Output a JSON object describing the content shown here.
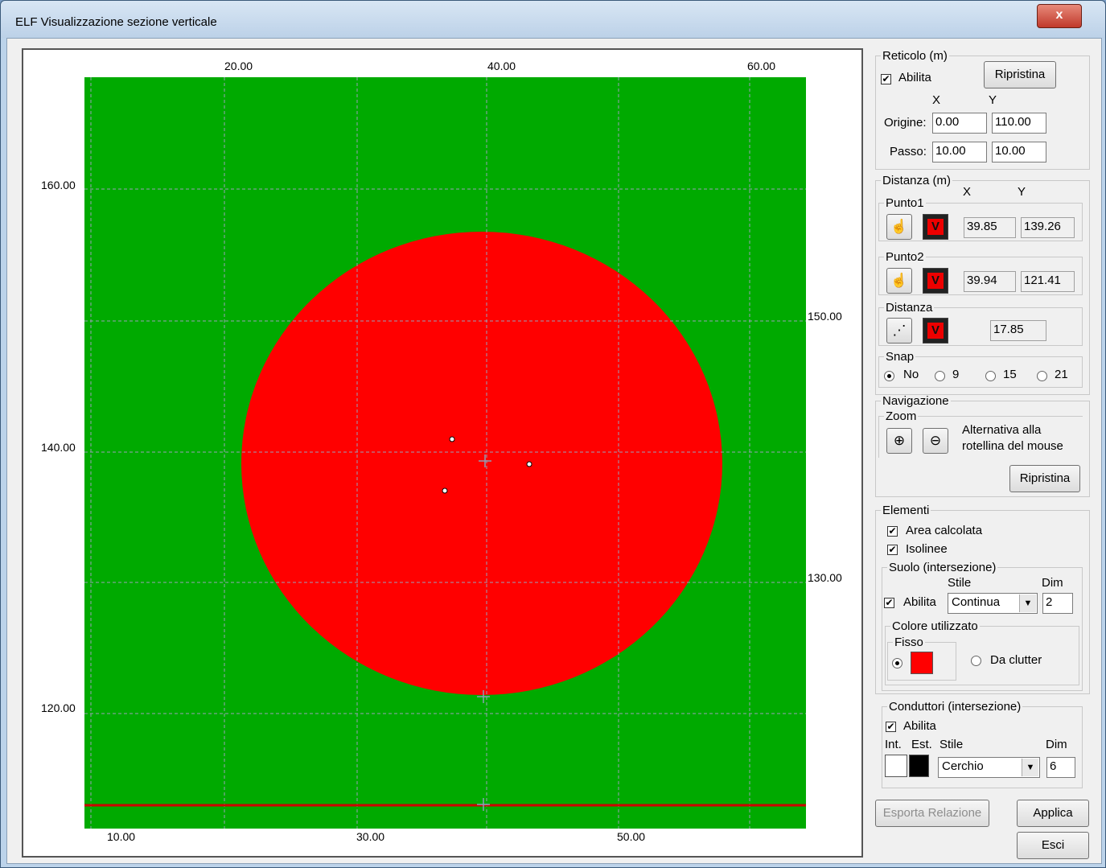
{
  "window": {
    "title": "ELF Visualizzazione sezione verticale",
    "close_label": "x"
  },
  "plot": {
    "top_ticks": [
      "20.00",
      "40.00",
      "60.00"
    ],
    "bottom_ticks": [
      "10.00",
      "30.00",
      "50.00"
    ],
    "left_ticks": [
      "160.00",
      "140.00",
      "120.00"
    ],
    "right_ticks": [
      "150.00",
      "130.00"
    ],
    "colors": {
      "background": "#00aa00",
      "area": "#ff0000",
      "grid": "#9aa0b8",
      "ground": "#cc0000"
    }
  },
  "reticolo": {
    "legend": "Reticolo (m)",
    "abilita_label": "Abilita",
    "abilita_checked": true,
    "ripristina_label": "Ripristina",
    "x_header": "X",
    "y_header": "Y",
    "origine_label": "Origine:",
    "origine_x": "0.00",
    "origine_y": "110.00",
    "passo_label": "Passo:",
    "passo_x": "10.00",
    "passo_y": "10.00"
  },
  "distanza": {
    "legend": "Distanza (m)",
    "x_header": "X",
    "y_header": "Y",
    "punto1_legend": "Punto1",
    "punto1_x": "39.85",
    "punto1_y": "139.26",
    "punto2_legend": "Punto2",
    "punto2_x": "39.94",
    "punto2_y": "121.41",
    "distanza_legend": "Distanza",
    "distanza_value": "17.85",
    "v_label": "V",
    "snap_legend": "Snap",
    "snap_options": [
      "No",
      "9",
      "15",
      "21"
    ],
    "snap_selected": "No"
  },
  "navigazione": {
    "legend": "Navigazione",
    "zoom_legend": "Zoom",
    "zoom_hint_line1": "Alternativa alla",
    "zoom_hint_line2": "rotellina del mouse",
    "ripristina_label": "Ripristina"
  },
  "elementi": {
    "legend": "Elementi",
    "area_calcolata_label": "Area calcolata",
    "isolinee_label": "Isolinee",
    "suolo": {
      "legend": "Suolo (intersezione)",
      "stile_header": "Stile",
      "dim_header": "Dim",
      "abilita_label": "Abilita",
      "stile_value": "Continua",
      "dim_value": "2",
      "colore_legend": "Colore utilizzato",
      "fisso_legend": "Fisso",
      "fisso_color": "#ff0000",
      "da_clutter_label": "Da clutter"
    },
    "conduttori": {
      "legend": "Conduttori (intersezione)",
      "abilita_label": "Abilita",
      "int_header": "Int.",
      "est_header": "Est.",
      "stile_header": "Stile",
      "dim_header": "Dim",
      "int_color": "#ffffff",
      "est_color": "#000000",
      "stile_value": "Cerchio",
      "dim_value": "6"
    }
  },
  "footer": {
    "esporta_label": "Esporta Relazione",
    "applica_label": "Applica",
    "esci_label": "Esci"
  }
}
